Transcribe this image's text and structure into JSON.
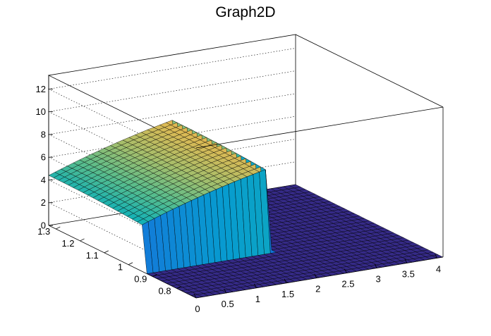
{
  "chart_data": {
    "type": "surface",
    "title": "Graph2D",
    "xlabel": "",
    "ylabel": "",
    "zlabel": "",
    "x_ticks": [
      "0",
      "0.5",
      "1",
      "1.5",
      "2",
      "2.5",
      "3",
      "3.5",
      "4"
    ],
    "y_ticks": [
      "0.8",
      "0.9",
      "1",
      "1.1",
      "1.2",
      "1.3"
    ],
    "z_ticks": [
      "0",
      "2",
      "4",
      "6",
      "8",
      "10",
      "12"
    ],
    "xlim": [
      0,
      4.1
    ],
    "ylim": [
      0.72,
      1.33
    ],
    "zlim": [
      0,
      13.2
    ],
    "grid": true,
    "palette": "kBird",
    "description_points": {
      "x": [
        0,
        0.5,
        1.0,
        1.5,
        2.0,
        2.5,
        3.0,
        3.5,
        4.0
      ],
      "y_at_edge": 1.3,
      "z_plateau_near_edge": [
        4.5,
        5.6,
        6.3,
        7.3,
        8.0,
        7.7,
        0,
        0,
        0
      ],
      "z_front_step": [
        0,
        0,
        0,
        0,
        0,
        0,
        0,
        0,
        0
      ]
    }
  }
}
